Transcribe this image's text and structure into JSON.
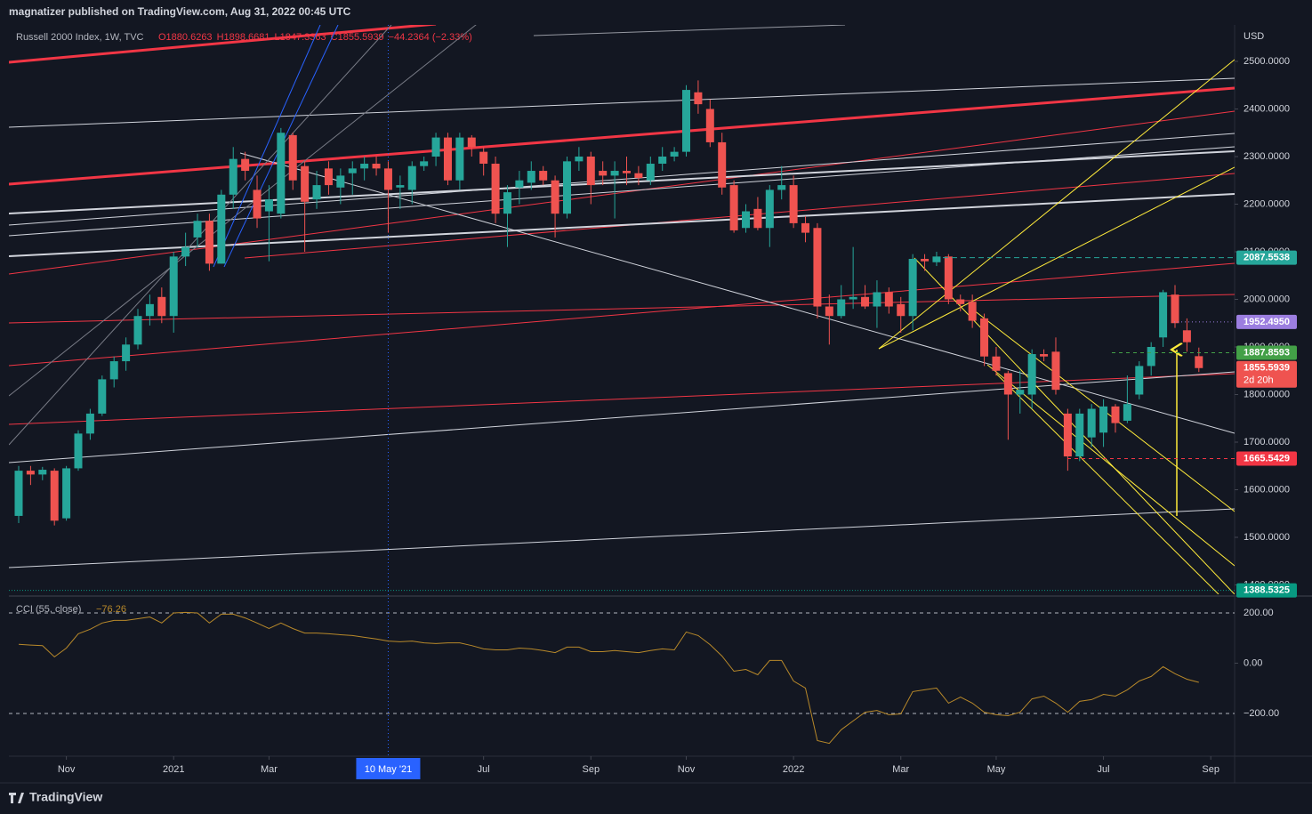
{
  "header": {
    "publisher": "magnatizer published on TradingView.com, Aug 31, 2022 00:45 UTC",
    "brand": "TradingView"
  },
  "chart_data": [
    {
      "type": "candlestick",
      "title": "Russell 2000 Index, 1W, TVC",
      "ohlc_labels": [
        "O1880.6263",
        "H1898.6681",
        "L1847.3363",
        "C1855.5939",
        "−44.2364 (−2.33%)"
      ],
      "currency": "USD",
      "colors": {
        "up": "#26a69a",
        "down": "#ef5350"
      },
      "xlim": [
        -0.82,
        102.0
      ],
      "xticks": [
        {
          "value": 4,
          "label": "Nov"
        },
        {
          "value": 13,
          "label": "2021"
        },
        {
          "value": 21,
          "label": "Mar"
        },
        {
          "value": 31,
          "label": "10 May '21",
          "highlight": true
        },
        {
          "value": 39,
          "label": "Jul"
        },
        {
          "value": 48,
          "label": "Sep"
        },
        {
          "value": 56,
          "label": "Nov"
        },
        {
          "value": 65,
          "label": "2022"
        },
        {
          "value": 74,
          "label": "Mar"
        },
        {
          "value": 82,
          "label": "May"
        },
        {
          "value": 91,
          "label": "Jul"
        },
        {
          "value": 100,
          "label": "Sep"
        }
      ],
      "ylim": [
        1380.4,
        2576.6
      ],
      "yticks": [
        {
          "value": 1400,
          "label": "1400.0000"
        },
        {
          "value": 1500,
          "label": "1500.0000"
        },
        {
          "value": 1600,
          "label": "1600.0000"
        },
        {
          "value": 1700,
          "label": "1700.0000"
        },
        {
          "value": 1800,
          "label": "1800.0000"
        },
        {
          "value": 1900,
          "label": "1900.0000"
        },
        {
          "value": 2000,
          "label": "2000.0000"
        },
        {
          "value": 2100,
          "label": "2100.0000"
        },
        {
          "value": 2200,
          "label": "2200.0000"
        },
        {
          "value": 2300,
          "label": "2300.0000"
        },
        {
          "value": 2400,
          "label": "2400.0000"
        },
        {
          "value": 2500,
          "label": "2500.0000"
        }
      ],
      "grid": false,
      "price_levels": [
        {
          "value": 2087.5538,
          "color": "#26a69a"
        },
        {
          "value": 1952.495,
          "label": "1952.4950",
          "color": "#9c7ee0"
        },
        {
          "value": 1887.8593,
          "color": "#43a047"
        },
        {
          "value": 1665.5429,
          "color": "#f23645"
        },
        {
          "value": 1388.5325,
          "color": "#089981"
        }
      ],
      "last_price_countdown": "2d 20h",
      "candles": [
        [
          1545,
          1650,
          1530,
          1640
        ],
        [
          1640,
          1650,
          1610,
          1632
        ],
        [
          1632,
          1648,
          1620,
          1642
        ],
        [
          1640,
          1645,
          1525,
          1535
        ],
        [
          1540,
          1650,
          1535,
          1645
        ],
        [
          1645,
          1725,
          1640,
          1718
        ],
        [
          1718,
          1770,
          1705,
          1760
        ],
        [
          1760,
          1840,
          1755,
          1832
        ],
        [
          1832,
          1880,
          1815,
          1870
        ],
        [
          1870,
          1920,
          1850,
          1905
        ],
        [
          1905,
          1980,
          1895,
          1965
        ],
        [
          1965,
          2010,
          1945,
          1990
        ],
        [
          2005,
          2025,
          1950,
          1965
        ],
        [
          1965,
          2100,
          1930,
          2090
        ],
        [
          2090,
          2140,
          2070,
          2110
        ],
        [
          2130,
          2180,
          2110,
          2165
        ],
        [
          2165,
          2180,
          2060,
          2075
        ],
        [
          2075,
          2230,
          2075,
          2220
        ],
        [
          2220,
          2320,
          2190,
          2295
        ],
        [
          2295,
          2310,
          2250,
          2270
        ],
        [
          2230,
          2260,
          2150,
          2170
        ],
        [
          2185,
          2240,
          2080,
          2210
        ],
        [
          2180,
          2360,
          2170,
          2350
        ],
        [
          2345,
          2350,
          2230,
          2250
        ],
        [
          2280,
          2290,
          2100,
          2205
        ],
        [
          2210,
          2270,
          2190,
          2240
        ],
        [
          2275,
          2290,
          2220,
          2240
        ],
        [
          2235,
          2275,
          2200,
          2260
        ],
        [
          2265,
          2290,
          2220,
          2275
        ],
        [
          2275,
          2300,
          2250,
          2285
        ],
        [
          2285,
          2300,
          2260,
          2275
        ],
        [
          2275,
          2290,
          2140,
          2230
        ],
        [
          2235,
          2260,
          2190,
          2240
        ],
        [
          2230,
          2290,
          2200,
          2280
        ],
        [
          2280,
          2300,
          2270,
          2290
        ],
        [
          2300,
          2350,
          2280,
          2340
        ],
        [
          2340,
          2350,
          2240,
          2250
        ],
        [
          2250,
          2350,
          2230,
          2340
        ],
        [
          2340,
          2345,
          2300,
          2320
        ],
        [
          2310,
          2320,
          2260,
          2285
        ],
        [
          2285,
          2300,
          2160,
          2180
        ],
        [
          2180,
          2240,
          2110,
          2225
        ],
        [
          2235,
          2270,
          2200,
          2250
        ],
        [
          2245,
          2290,
          2230,
          2270
        ],
        [
          2270,
          2280,
          2240,
          2250
        ],
        [
          2250,
          2260,
          2130,
          2180
        ],
        [
          2180,
          2300,
          2170,
          2290
        ],
        [
          2290,
          2320,
          2270,
          2300
        ],
        [
          2300,
          2310,
          2200,
          2240
        ],
        [
          2270,
          2290,
          2240,
          2260
        ],
        [
          2260,
          2290,
          2170,
          2270
        ],
        [
          2270,
          2300,
          2240,
          2265
        ],
        [
          2265,
          2280,
          2240,
          2255
        ],
        [
          2250,
          2300,
          2240,
          2285
        ],
        [
          2285,
          2320,
          2270,
          2300
        ],
        [
          2300,
          2320,
          2290,
          2310
        ],
        [
          2310,
          2450,
          2300,
          2440
        ],
        [
          2435,
          2460,
          2390,
          2410
        ],
        [
          2400,
          2420,
          2320,
          2330
        ],
        [
          2330,
          2350,
          2220,
          2235
        ],
        [
          2240,
          2250,
          2140,
          2145
        ],
        [
          2150,
          2200,
          2140,
          2185
        ],
        [
          2190,
          2215,
          2145,
          2150
        ],
        [
          2150,
          2240,
          2110,
          2230
        ],
        [
          2230,
          2280,
          2210,
          2240
        ],
        [
          2240,
          2260,
          2150,
          2160
        ],
        [
          2160,
          2175,
          2120,
          2140
        ],
        [
          2150,
          2160,
          1960,
          1985
        ],
        [
          1985,
          2010,
          1905,
          1965
        ],
        [
          1965,
          2030,
          1960,
          2000
        ],
        [
          2000,
          2110,
          1980,
          2005
        ],
        [
          2005,
          2030,
          1980,
          1985
        ],
        [
          1985,
          2040,
          1940,
          2015
        ],
        [
          2015,
          2025,
          1970,
          1985
        ],
        [
          1990,
          2005,
          1930,
          1965
        ],
        [
          1965,
          2095,
          1935,
          2085
        ],
        [
          2085,
          2095,
          2060,
          2080
        ],
        [
          2078,
          2100,
          2070,
          2090
        ],
        [
          2090,
          2095,
          1990,
          2000
        ],
        [
          2000,
          2010,
          1975,
          1990
        ],
        [
          1995,
          2010,
          1940,
          1955
        ],
        [
          1960,
          1970,
          1860,
          1880
        ],
        [
          1880,
          1900,
          1840,
          1850
        ],
        [
          1845,
          1850,
          1705,
          1800
        ],
        [
          1800,
          1850,
          1760,
          1810
        ],
        [
          1800,
          1895,
          1770,
          1885
        ],
        [
          1885,
          1895,
          1870,
          1880
        ],
        [
          1890,
          1920,
          1800,
          1810
        ],
        [
          1760,
          1770,
          1640,
          1670
        ],
        [
          1670,
          1770,
          1660,
          1760
        ],
        [
          1710,
          1780,
          1690,
          1770
        ],
        [
          1720,
          1790,
          1690,
          1775
        ],
        [
          1775,
          1780,
          1720,
          1740
        ],
        [
          1745,
          1840,
          1740,
          1780
        ],
        [
          1800,
          1870,
          1790,
          1860
        ],
        [
          1860,
          1910,
          1840,
          1900
        ],
        [
          1920,
          2020,
          1900,
          2015
        ],
        [
          2010,
          2030,
          1940,
          1950
        ],
        [
          1935,
          1960,
          1890,
          1910
        ],
        [
          1880.6263,
          1898.6681,
          1847.3363,
          1855.5939
        ]
      ]
    },
    {
      "type": "line",
      "title": "CCI (55, close)",
      "value_label": "−76.26",
      "color": "#b8892a",
      "ylim": [
        -370,
        260
      ],
      "yticks": [
        {
          "value": 200,
          "label": "200.00"
        },
        {
          "value": 0,
          "label": "0.00"
        },
        {
          "value": -200,
          "label": "−200.00"
        }
      ],
      "values": [
        75,
        72,
        70,
        25,
        60,
        117,
        135,
        160,
        170,
        170,
        177,
        184,
        160,
        200,
        202,
        200,
        160,
        195,
        195,
        180,
        160,
        138,
        160,
        138,
        120,
        120,
        117,
        113,
        110,
        103,
        96,
        88,
        85,
        88,
        81,
        78,
        81,
        81,
        70,
        57,
        53,
        53,
        60,
        57,
        50,
        42,
        64,
        64,
        46,
        46,
        50,
        46,
        42,
        50,
        57,
        53,
        124,
        110,
        74,
        28,
        -32,
        -25,
        -46,
        11,
        11,
        -71,
        -99,
        -308,
        -319,
        -265,
        -230,
        -195,
        -188,
        -205,
        -202,
        -113,
        -106,
        -99,
        -159,
        -135,
        -159,
        -195,
        -205,
        -209,
        -195,
        -142,
        -131,
        -159,
        -195,
        -152,
        -145,
        -124,
        -131,
        -106,
        -71,
        -53,
        -14,
        -42,
        -64,
        -76.26
      ]
    }
  ]
}
